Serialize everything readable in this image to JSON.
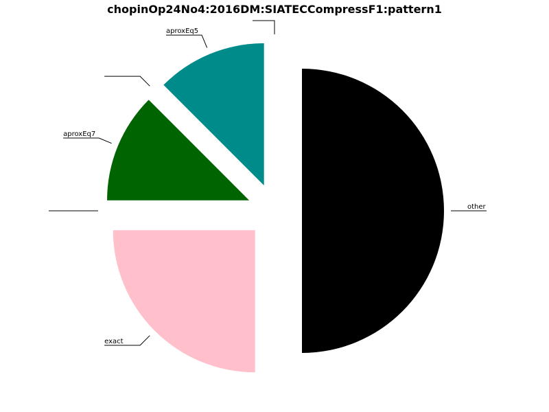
{
  "chart_data": {
    "type": "pie",
    "title": "chopinOp24No4:2016DM:SIATECCompressF1:pattern1",
    "start_angle_deg": 0,
    "direction": "clockwise",
    "exploded": true,
    "slices": [
      {
        "label": "other",
        "value": 50,
        "color": "#000000"
      },
      {
        "label": "exact",
        "value": 25,
        "color": "#ffc0cb"
      },
      {
        "label": "",
        "value": 0,
        "color": "#ffffff"
      },
      {
        "label": "aproxEq7",
        "value": 12.5,
        "color": "#006400"
      },
      {
        "label": "",
        "value": 0,
        "color": "#ffffff"
      },
      {
        "label": "aproxEq5",
        "value": 12.5,
        "color": "#008b8b"
      },
      {
        "label": "",
        "value": 0,
        "color": "#ffffff"
      }
    ]
  }
}
